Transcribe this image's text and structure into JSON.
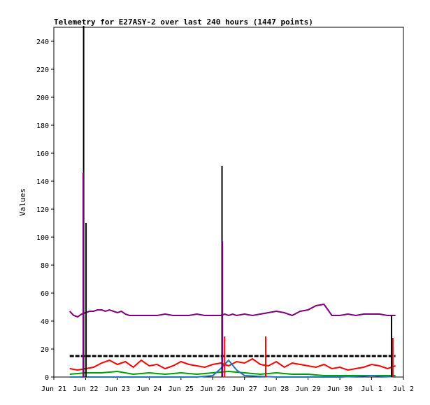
{
  "chart_data": {
    "type": "line",
    "title": "Telemetry for E27ASY-2 over last 240 hours (1447 points)",
    "xlabel": "",
    "ylabel": "Values",
    "xlim": [
      "2020-06-21",
      "2020-07-02"
    ],
    "ylim": [
      0,
      250
    ],
    "x_tick_labels": [
      "Jun 21",
      "Jun 22",
      "Jun 23",
      "Jun 24",
      "Jun 25",
      "Jun 26",
      "Jun 27",
      "Jun 28",
      "Jun 29",
      "Jun 30",
      "Jul 1",
      "Jul 2"
    ],
    "y_tick_values": [
      0,
      20,
      40,
      60,
      80,
      100,
      120,
      140,
      160,
      180,
      200,
      220,
      240
    ],
    "grid": false,
    "legend": "none",
    "series": [
      {
        "color": "#7d007d",
        "x": [
          "2020-06-21T12:00",
          "2020-06-21T15:00",
          "2020-06-21T18:00",
          "2020-06-21T21:00",
          "2020-06-22T00:00",
          "2020-06-22T03:00",
          "2020-06-22T06:00",
          "2020-06-22T09:00",
          "2020-06-22T12:00",
          "2020-06-22T15:00",
          "2020-06-22T18:00",
          "2020-06-22T21:00",
          "2020-06-23T00:00",
          "2020-06-23T03:00",
          "2020-06-23T06:00",
          "2020-06-23T09:00",
          "2020-06-23T12:00",
          "2020-06-23T18:00",
          "2020-06-24T00:00",
          "2020-06-24T06:00",
          "2020-06-24T12:00",
          "2020-06-24T18:00",
          "2020-06-25T00:00",
          "2020-06-25T06:00",
          "2020-06-25T12:00",
          "2020-06-25T18:00",
          "2020-06-26T00:00",
          "2020-06-26T06:00",
          "2020-06-26T09:00",
          "2020-06-26T12:00",
          "2020-06-26T15:00",
          "2020-06-26T18:00",
          "2020-06-27T00:00",
          "2020-06-27T06:00",
          "2020-06-27T12:00",
          "2020-06-27T18:00",
          "2020-06-28T00:00",
          "2020-06-28T06:00",
          "2020-06-28T12:00",
          "2020-06-28T18:00",
          "2020-06-29T00:00",
          "2020-06-29T06:00",
          "2020-06-29T12:00",
          "2020-06-29T18:00",
          "2020-06-30T00:00",
          "2020-06-30T06:00",
          "2020-06-30T12:00",
          "2020-06-30T18:00",
          "2020-07-01T00:00",
          "2020-07-01T06:00",
          "2020-07-01T12:00",
          "2020-07-01T18:00"
        ],
        "y": [
          47,
          44,
          43,
          45,
          46,
          47,
          47,
          48,
          48,
          47,
          48,
          47,
          46,
          47,
          45,
          44,
          44,
          44,
          44,
          44,
          45,
          44,
          44,
          44,
          45,
          44,
          44,
          44,
          45,
          44,
          45,
          44,
          45,
          44,
          45,
          46,
          47,
          46,
          44,
          47,
          48,
          51,
          52,
          44,
          44,
          45,
          44,
          45,
          45,
          45,
          44,
          44
        ]
      },
      {
        "color": "#000000",
        "x": [
          "2020-06-21T12:00",
          "2020-06-22T00:00",
          "2020-06-22T06:00",
          "2020-06-22T12:00",
          "2020-06-23T00:00",
          "2020-06-23T12:00",
          "2020-06-24T00:00",
          "2020-06-24T12:00",
          "2020-06-25T00:00",
          "2020-06-25T12:00",
          "2020-06-26T00:00",
          "2020-06-26T12:00",
          "2020-06-27T00:00",
          "2020-06-27T12:00",
          "2020-06-28T00:00",
          "2020-06-28T12:00",
          "2020-06-29T00:00",
          "2020-06-29T12:00",
          "2020-06-30T00:00",
          "2020-06-30T12:00",
          "2020-07-01T00:00",
          "2020-07-01T18:00"
        ],
        "y": [
          15,
          15,
          15,
          15,
          15,
          15,
          15,
          15,
          15,
          15,
          15,
          15,
          15,
          15,
          15,
          15,
          15,
          15,
          15,
          15,
          15,
          15
        ]
      },
      {
        "color": "#ff0000",
        "x": [
          "2020-06-21T12:00",
          "2020-06-21T18:00",
          "2020-06-22T00:00",
          "2020-06-22T06:00",
          "2020-06-22T12:00",
          "2020-06-22T18:00",
          "2020-06-23T00:00",
          "2020-06-23T06:00",
          "2020-06-23T12:00",
          "2020-06-23T18:00",
          "2020-06-24T00:00",
          "2020-06-24T06:00",
          "2020-06-24T12:00",
          "2020-06-24T18:00",
          "2020-06-25T00:00",
          "2020-06-25T06:00",
          "2020-06-25T12:00",
          "2020-06-25T18:00",
          "2020-06-26T00:00",
          "2020-06-26T06:00",
          "2020-06-26T12:00",
          "2020-06-26T18:00",
          "2020-06-27T00:00",
          "2020-06-27T06:00",
          "2020-06-27T12:00",
          "2020-06-27T18:00",
          "2020-06-28T00:00",
          "2020-06-28T06:00",
          "2020-06-28T12:00",
          "2020-06-28T18:00",
          "2020-06-29T00:00",
          "2020-06-29T06:00",
          "2020-06-29T12:00",
          "2020-06-29T18:00",
          "2020-06-30T00:00",
          "2020-06-30T06:00",
          "2020-06-30T12:00",
          "2020-06-30T18:00",
          "2020-07-01T00:00",
          "2020-07-01T06:00",
          "2020-07-01T12:00",
          "2020-07-01T18:00"
        ],
        "y": [
          6,
          5,
          6,
          7,
          10,
          12,
          9,
          11,
          7,
          12,
          8,
          9,
          6,
          8,
          11,
          9,
          8,
          7,
          9,
          10,
          8,
          11,
          10,
          13,
          9,
          8,
          11,
          7,
          10,
          9,
          8,
          7,
          9,
          6,
          7,
          5,
          6,
          7,
          9,
          8,
          6,
          8
        ]
      },
      {
        "color": "#00a000",
        "x": [
          "2020-06-21T12:00",
          "2020-06-22T00:00",
          "2020-06-22T12:00",
          "2020-06-23T00:00",
          "2020-06-23T12:00",
          "2020-06-24T00:00",
          "2020-06-24T12:00",
          "2020-06-25T00:00",
          "2020-06-25T12:00",
          "2020-06-26T00:00",
          "2020-06-26T12:00",
          "2020-06-27T00:00",
          "2020-06-27T12:00",
          "2020-06-28T00:00",
          "2020-06-28T12:00",
          "2020-06-29T00:00",
          "2020-06-29T12:00",
          "2020-06-30T00:00",
          "2020-06-30T12:00",
          "2020-07-01T00:00",
          "2020-07-01T18:00"
        ],
        "y": [
          2,
          3,
          3,
          4,
          2,
          3,
          2,
          3,
          2,
          3,
          4,
          3,
          2,
          3,
          2,
          2,
          1,
          1,
          1,
          1,
          1
        ]
      },
      {
        "color": "#1f77b4",
        "x": [
          "2020-06-21T12:00",
          "2020-06-22T12:00",
          "2020-06-23T12:00",
          "2020-06-24T12:00",
          "2020-06-25T12:00",
          "2020-06-26T00:00",
          "2020-06-26T06:00",
          "2020-06-26T12:00",
          "2020-06-26T18:00",
          "2020-06-27T00:00",
          "2020-06-28T00:00",
          "2020-06-29T00:00",
          "2020-06-30T00:00",
          "2020-07-01T00:00",
          "2020-07-01T18:00"
        ],
        "y": [
          0,
          0,
          0,
          0,
          0,
          1,
          6,
          12,
          5,
          1,
          0,
          0,
          0,
          1,
          0
        ]
      }
    ],
    "spikes": [
      {
        "x": "2020-06-21T22:30",
        "y": 251,
        "color": "#000000"
      },
      {
        "x": "2020-06-21T22:10",
        "y": 146,
        "color": "#7d007d"
      },
      {
        "x": "2020-06-22T00:20",
        "y": 110,
        "color": "#000000"
      },
      {
        "x": "2020-06-26T07:00",
        "y": 151,
        "color": "#000000"
      },
      {
        "x": "2020-06-26T07:20",
        "y": 97,
        "color": "#7d007d"
      },
      {
        "x": "2020-06-26T09:00",
        "y": 29,
        "color": "#ff0000"
      },
      {
        "x": "2020-06-27T16:00",
        "y": 29,
        "color": "#ff0000"
      },
      {
        "x": "2020-07-01T15:00",
        "y": 44,
        "color": "#000000"
      },
      {
        "x": "2020-07-01T16:00",
        "y": 28,
        "color": "#ff0000"
      }
    ]
  }
}
